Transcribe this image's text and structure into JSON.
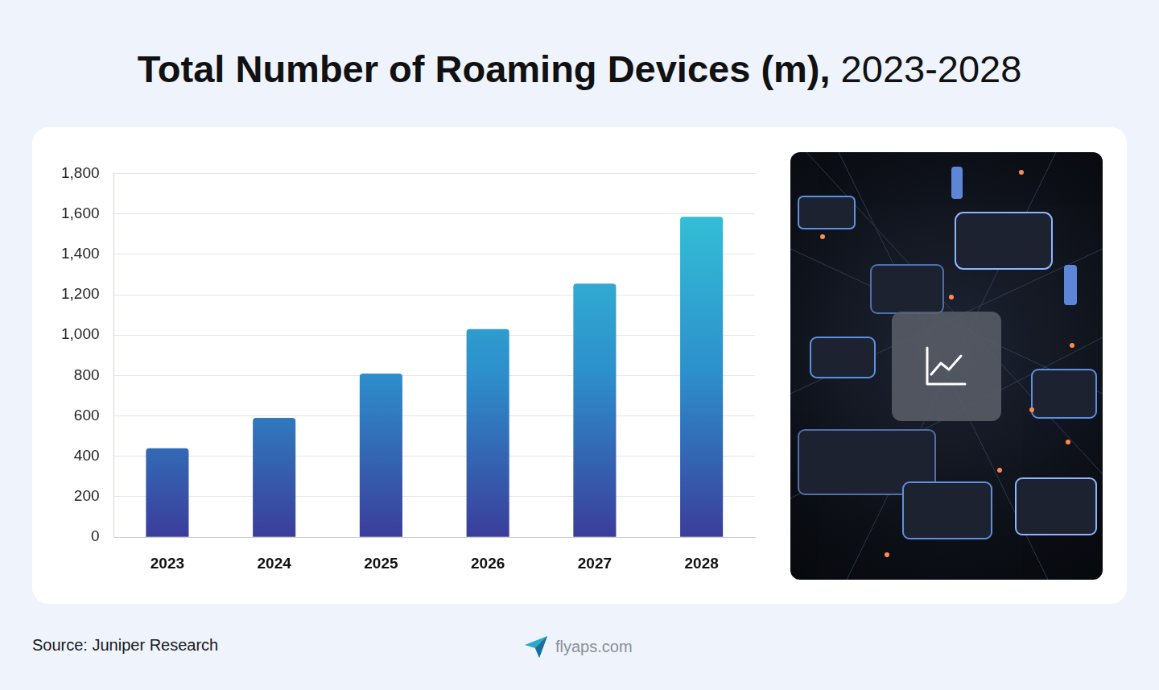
{
  "chart_data": {
    "type": "bar",
    "title": "Total Number of Roaming Devices (m), 2023-2028",
    "categories": [
      "2023",
      "2024",
      "2025",
      "2026",
      "2027",
      "2028"
    ],
    "values": [
      440,
      590,
      810,
      1030,
      1255,
      1585
    ],
    "color": "#35cad8",
    "ylim": [
      0,
      1800
    ],
    "yticks": [
      0,
      200,
      400,
      600,
      800,
      {
        "value": 1000,
        "label": "1,000"
      },
      {
        "value": 1200,
        "label": "1,200"
      },
      {
        "value": 1400,
        "label": "1,400"
      },
      {
        "value": 1600,
        "label": "1,600"
      },
      {
        "value": 1800,
        "label": "1,800"
      }
    ],
    "grid": true
  },
  "source": "Source: Juniper Research",
  "brand": "flyaps.com"
}
